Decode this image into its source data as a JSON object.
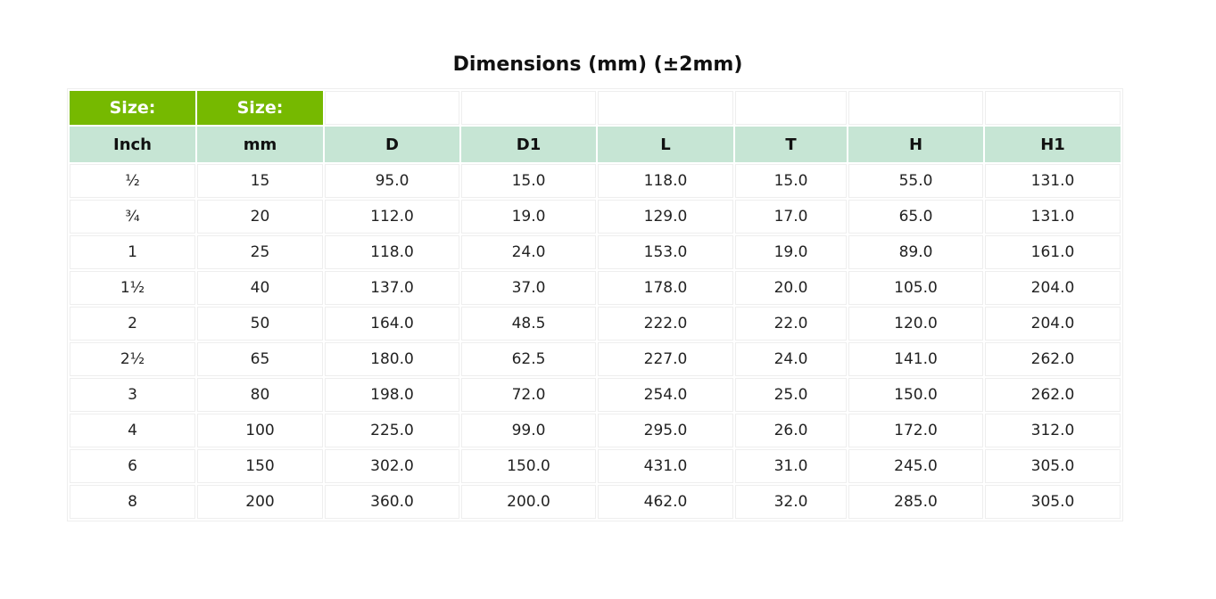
{
  "title": "Dimensions (mm) (±2mm)",
  "size_labels": [
    "Size:",
    "Size:"
  ],
  "headers": [
    "Inch",
    "mm",
    "D",
    "D1",
    "L",
    "T",
    "H",
    "H1"
  ],
  "rows": [
    [
      "½",
      "15",
      "95.0",
      "15.0",
      "118.0",
      "15.0",
      "55.0",
      "131.0"
    ],
    [
      "¾",
      "20",
      "112.0",
      "19.0",
      "129.0",
      "17.0",
      "65.0",
      "131.0"
    ],
    [
      "1",
      "25",
      "118.0",
      "24.0",
      "153.0",
      "19.0",
      "89.0",
      "161.0"
    ],
    [
      "1½",
      "40",
      "137.0",
      "37.0",
      "178.0",
      "20.0",
      "105.0",
      "204.0"
    ],
    [
      "2",
      "50",
      "164.0",
      "48.5",
      "222.0",
      "22.0",
      "120.0",
      "204.0"
    ],
    [
      "2½",
      "65",
      "180.0",
      "62.5",
      "227.0",
      "24.0",
      "141.0",
      "262.0"
    ],
    [
      "3",
      "80",
      "198.0",
      "72.0",
      "254.0",
      "25.0",
      "150.0",
      "262.0"
    ],
    [
      "4",
      "100",
      "225.0",
      "99.0",
      "295.0",
      "26.0",
      "172.0",
      "312.0"
    ],
    [
      "6",
      "150",
      "302.0",
      "150.0",
      "431.0",
      "31.0",
      "245.0",
      "305.0"
    ],
    [
      "8",
      "200",
      "360.0",
      "200.0",
      "462.0",
      "32.0",
      "285.0",
      "305.0"
    ]
  ],
  "colors": {
    "size_header": "#76b900",
    "column_header": "#c6e5d4"
  }
}
